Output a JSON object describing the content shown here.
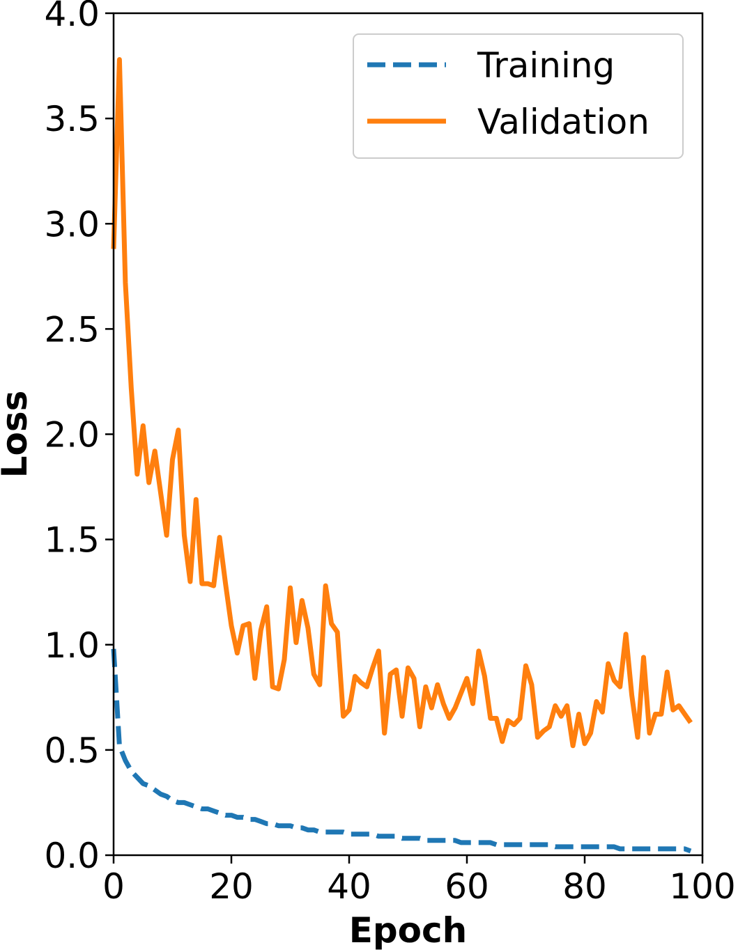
{
  "chart_data": {
    "type": "line",
    "title": "",
    "xlabel": "Epoch",
    "ylabel": "Loss",
    "xlim": [
      0,
      100
    ],
    "ylim": [
      0,
      4
    ],
    "xticks": [
      "0",
      "20",
      "40",
      "60",
      "80",
      "100"
    ],
    "yticks": [
      "0.0",
      "0.5",
      "1.0",
      "1.5",
      "2.0",
      "2.5",
      "3.0",
      "3.5",
      "4.0"
    ],
    "grid": false,
    "legend_position": "top-right",
    "x": [
      0,
      1,
      2,
      3,
      4,
      5,
      6,
      7,
      8,
      9,
      10,
      11,
      12,
      13,
      14,
      15,
      16,
      17,
      18,
      19,
      20,
      21,
      22,
      23,
      24,
      25,
      26,
      27,
      28,
      29,
      30,
      31,
      32,
      33,
      34,
      35,
      36,
      37,
      38,
      39,
      40,
      41,
      42,
      43,
      44,
      45,
      46,
      47,
      48,
      49,
      50,
      51,
      52,
      53,
      54,
      55,
      56,
      57,
      58,
      59,
      60,
      61,
      62,
      63,
      64,
      65,
      66,
      67,
      68,
      69,
      70,
      71,
      72,
      73,
      74,
      75,
      76,
      77,
      78,
      79,
      80,
      81,
      82,
      83,
      84,
      85,
      86,
      87,
      88,
      89,
      90,
      91,
      92,
      93,
      94,
      95,
      96,
      97,
      98
    ],
    "series": [
      {
        "name": "Training",
        "color": "#1f77b4",
        "style": "dashed",
        "values": [
          0.98,
          0.52,
          0.45,
          0.4,
          0.37,
          0.34,
          0.33,
          0.31,
          0.29,
          0.28,
          0.26,
          0.25,
          0.25,
          0.24,
          0.23,
          0.22,
          0.22,
          0.21,
          0.2,
          0.19,
          0.19,
          0.18,
          0.18,
          0.17,
          0.17,
          0.16,
          0.15,
          0.15,
          0.14,
          0.14,
          0.14,
          0.13,
          0.13,
          0.12,
          0.12,
          0.11,
          0.11,
          0.11,
          0.11,
          0.11,
          0.1,
          0.1,
          0.1,
          0.1,
          0.1,
          0.09,
          0.09,
          0.09,
          0.09,
          0.08,
          0.08,
          0.08,
          0.08,
          0.07,
          0.07,
          0.07,
          0.07,
          0.07,
          0.07,
          0.06,
          0.06,
          0.06,
          0.06,
          0.06,
          0.06,
          0.05,
          0.05,
          0.05,
          0.05,
          0.05,
          0.05,
          0.05,
          0.05,
          0.05,
          0.05,
          0.04,
          0.04,
          0.04,
          0.04,
          0.04,
          0.04,
          0.04,
          0.04,
          0.04,
          0.04,
          0.04,
          0.03,
          0.03,
          0.03,
          0.03,
          0.03,
          0.03,
          0.03,
          0.03,
          0.03,
          0.03,
          0.03,
          0.03,
          0.02
        ]
      },
      {
        "name": "Validation",
        "color": "#ff7f0e",
        "style": "solid",
        "values": [
          2.88,
          3.78,
          2.72,
          2.22,
          1.81,
          2.04,
          1.77,
          1.92,
          1.72,
          1.52,
          1.88,
          2.02,
          1.52,
          1.3,
          1.69,
          1.29,
          1.29,
          1.28,
          1.51,
          1.29,
          1.09,
          0.96,
          1.09,
          1.1,
          0.84,
          1.07,
          1.18,
          0.8,
          0.79,
          0.93,
          1.27,
          1.01,
          1.21,
          1.08,
          0.86,
          0.81,
          1.28,
          1.1,
          1.06,
          0.66,
          0.69,
          0.85,
          0.82,
          0.8,
          0.89,
          0.97,
          0.58,
          0.86,
          0.88,
          0.66,
          0.89,
          0.84,
          0.61,
          0.8,
          0.7,
          0.81,
          0.72,
          0.65,
          0.7,
          0.77,
          0.84,
          0.72,
          0.97,
          0.85,
          0.65,
          0.65,
          0.54,
          0.64,
          0.62,
          0.65,
          0.9,
          0.81,
          0.56,
          0.59,
          0.61,
          0.71,
          0.66,
          0.71,
          0.52,
          0.67,
          0.53,
          0.58,
          0.73,
          0.68,
          0.91,
          0.83,
          0.8,
          1.05,
          0.76,
          0.56,
          0.94,
          0.58,
          0.67,
          0.67,
          0.87,
          0.69,
          0.71,
          0.67,
          0.63
        ]
      }
    ]
  }
}
